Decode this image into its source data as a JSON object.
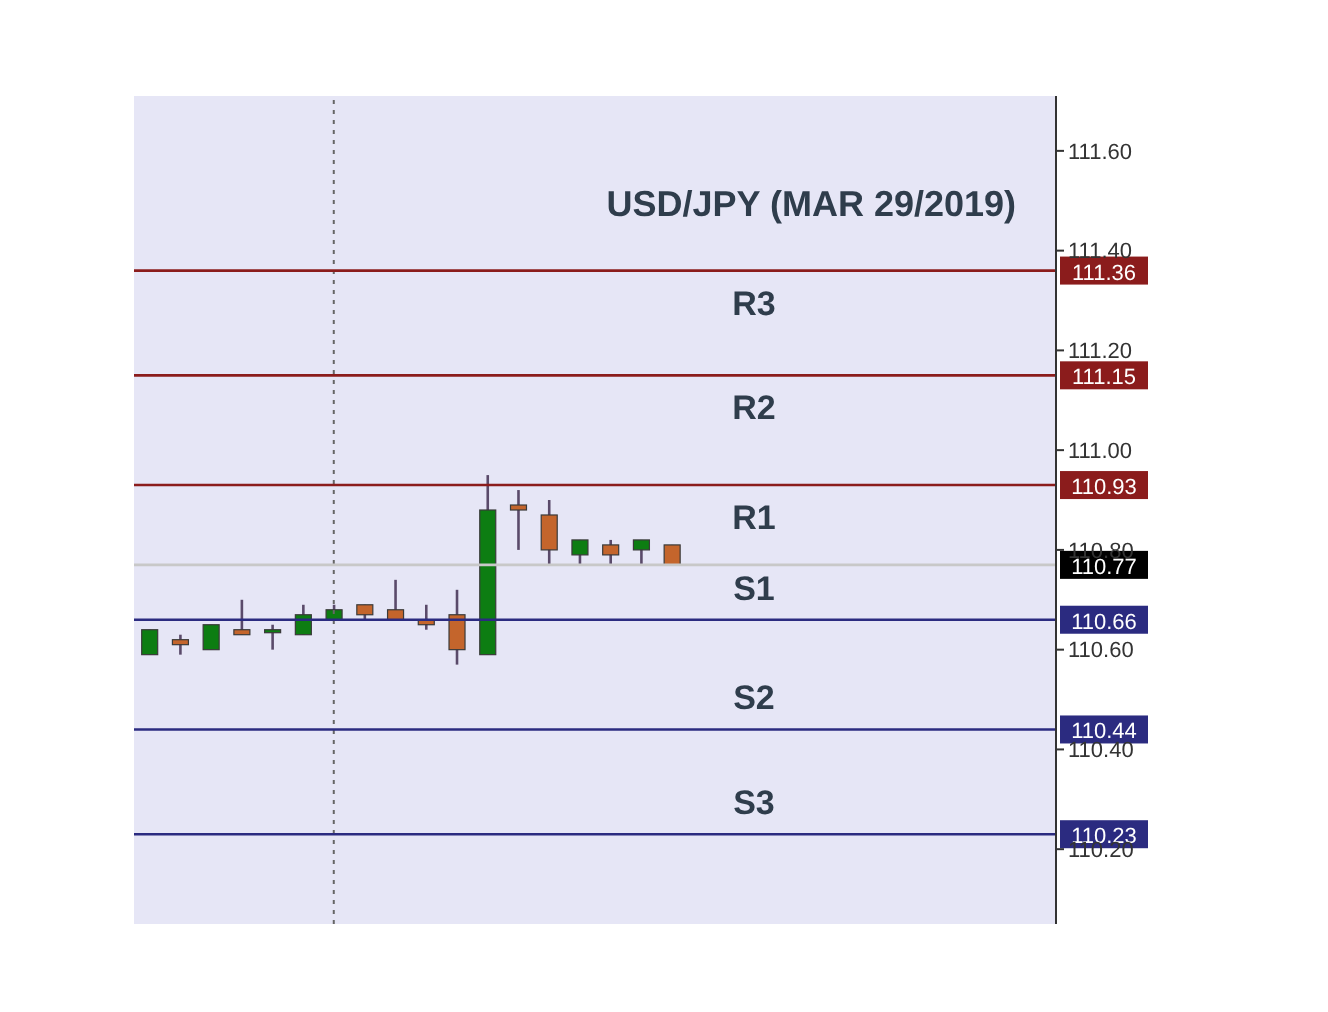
{
  "chart_data": {
    "type": "candlestick",
    "title": "USD/JPY (MAR 29/2019)",
    "categories": [
      null,
      null,
      null,
      null,
      null,
      null,
      null,
      null,
      null,
      null,
      null,
      null,
      null,
      null,
      null,
      null,
      null,
      null,
      null,
      null,
      null,
      null,
      null,
      null,
      null,
      null,
      null,
      null,
      null,
      null
    ],
    "ohlc": [
      [
        110.59,
        110.64,
        110.59,
        110.64
      ],
      [
        110.62,
        110.63,
        110.59,
        110.61
      ],
      [
        110.6,
        110.65,
        110.6,
        110.65
      ],
      [
        110.64,
        110.7,
        110.63,
        110.63
      ],
      [
        110.64,
        110.65,
        110.6,
        110.64
      ],
      [
        110.63,
        110.69,
        110.63,
        110.67
      ],
      [
        110.66,
        110.69,
        110.66,
        110.68
      ],
      [
        110.69,
        110.69,
        110.66,
        110.67
      ],
      [
        110.68,
        110.74,
        110.66,
        110.66
      ],
      [
        110.66,
        110.69,
        110.64,
        110.65
      ],
      [
        110.67,
        110.72,
        110.57,
        110.6
      ],
      [
        110.59,
        110.95,
        110.59,
        110.88
      ],
      [
        110.89,
        110.92,
        110.8,
        110.88
      ],
      [
        110.87,
        110.9,
        110.77,
        110.8
      ],
      [
        110.79,
        110.82,
        110.77,
        110.82
      ],
      [
        110.81,
        110.82,
        110.77,
        110.79
      ],
      [
        110.8,
        110.82,
        110.77,
        110.82
      ],
      [
        110.81,
        110.81,
        110.77,
        110.77
      ],
      null,
      null,
      null,
      null,
      null,
      null,
      null,
      null,
      null,
      null,
      null,
      null
    ],
    "ylim": [
      110.05,
      111.71
    ],
    "yticks": [
      {
        "value": 110.2,
        "label": "110.20"
      },
      {
        "value": 110.4,
        "label": "110.40"
      },
      {
        "value": 110.6,
        "label": "110.60"
      },
      {
        "value": 110.8,
        "label": "110.80"
      },
      {
        "value": 111.0,
        "label": "111.00"
      },
      {
        "value": 111.2,
        "label": "111.20"
      },
      {
        "value": 111.4,
        "label": "111.40"
      },
      {
        "value": 111.6,
        "label": "111.60"
      }
    ],
    "ref_lines": [
      {
        "axis": "y",
        "value": 111.36,
        "label": "R3",
        "color": "#8b1c1c"
      },
      {
        "axis": "y",
        "value": 111.15,
        "label": "R2",
        "color": "#8b1c1c"
      },
      {
        "axis": "y",
        "value": 110.93,
        "label": "R1",
        "color": "#8b1c1c"
      },
      {
        "axis": "y",
        "value": 110.77,
        "color": "#c8c8c8"
      },
      {
        "axis": "y",
        "value": 110.66,
        "label": "S1",
        "color": "#2b2b80"
      },
      {
        "axis": "y",
        "value": 110.44,
        "label": "S2",
        "color": "#2b2b80"
      },
      {
        "axis": "y",
        "value": 110.23,
        "label": "S3",
        "color": "#2b2b80"
      }
    ],
    "annotations": [
      {
        "text": "111.36",
        "y": 111.36
      },
      {
        "text": "111.15",
        "y": 111.15
      },
      {
        "text": "110.93",
        "y": 110.93
      },
      {
        "text": "110.77",
        "y": 110.77
      },
      {
        "text": "110.66",
        "y": 110.66
      },
      {
        "text": "110.44",
        "y": 110.44
      },
      {
        "text": "110.23",
        "y": 110.23
      }
    ]
  }
}
